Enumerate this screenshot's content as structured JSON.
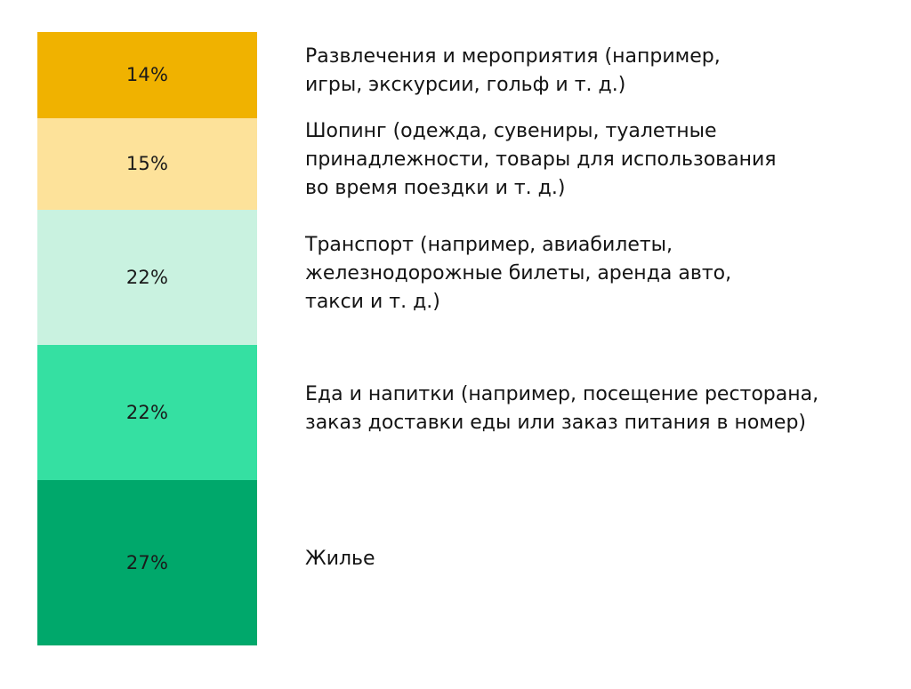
{
  "chart_data": {
    "type": "bar",
    "orientation": "stacked-vertical",
    "series": [
      {
        "category": "Развлечения и мероприятия (например,\nигры, экскурсии, гольф и т. д.)",
        "value": 14,
        "label": "14%",
        "color": "#F0B200"
      },
      {
        "category": "Шопинг (одежда, сувениры, туалетные\nпринадлежности, товары для использования\nво время поездки и т. д.)",
        "value": 15,
        "label": "15%",
        "color": "#FDE29A"
      },
      {
        "category": "Транспорт (например, авиабилеты,\nжелезнодорожные билеты, аренда авто,\nтакси и т. д.)",
        "value": 22,
        "label": "22%",
        "color": "#C9F2E0"
      },
      {
        "category": "Еда и напитки (например, посещение ресторана,\nзаказ доставки еды или заказ питания в номер)",
        "value": 22,
        "label": "22%",
        "color": "#35E0A2"
      },
      {
        "category": "Жилье",
        "value": 27,
        "label": "27%",
        "color": "#00A86B"
      }
    ],
    "unit": "%"
  }
}
